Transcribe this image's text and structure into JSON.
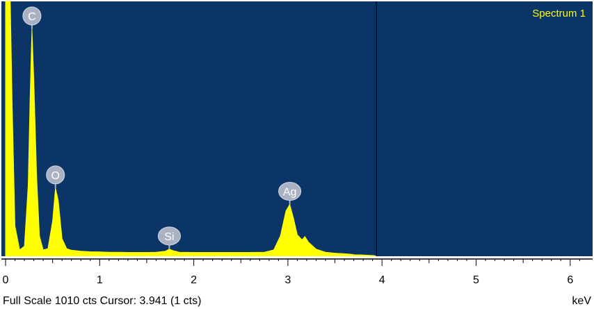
{
  "colors": {
    "plot_background": "#0a3566",
    "trace": "#ffff00",
    "peak_marker": "#a9b1c2",
    "cursor_line": "#000000",
    "legend_text": "#ffff00"
  },
  "chart_data": {
    "type": "area",
    "title": "",
    "series": [
      {
        "name": "Spectrum 1",
        "points": [
          [
            0.0,
            1010
          ],
          [
            0.03,
            1010
          ],
          [
            0.05,
            1010
          ],
          [
            0.07,
            600
          ],
          [
            0.1,
            120
          ],
          [
            0.15,
            25
          ],
          [
            0.2,
            40
          ],
          [
            0.24,
            280
          ],
          [
            0.26,
            620
          ],
          [
            0.28,
            900
          ],
          [
            0.3,
            700
          ],
          [
            0.33,
            320
          ],
          [
            0.36,
            80
          ],
          [
            0.4,
            25
          ],
          [
            0.45,
            30
          ],
          [
            0.5,
            140
          ],
          [
            0.53,
            270
          ],
          [
            0.56,
            220
          ],
          [
            0.6,
            70
          ],
          [
            0.65,
            30
          ],
          [
            0.7,
            24
          ],
          [
            0.8,
            20
          ],
          [
            0.9,
            18
          ],
          [
            1.0,
            17
          ],
          [
            1.1,
            16
          ],
          [
            1.2,
            16
          ],
          [
            1.3,
            15
          ],
          [
            1.4,
            15
          ],
          [
            1.5,
            15
          ],
          [
            1.6,
            16
          ],
          [
            1.7,
            20
          ],
          [
            1.74,
            28
          ],
          [
            1.78,
            22
          ],
          [
            1.85,
            16
          ],
          [
            2.0,
            15
          ],
          [
            2.2,
            15
          ],
          [
            2.4,
            15
          ],
          [
            2.6,
            15
          ],
          [
            2.75,
            16
          ],
          [
            2.85,
            25
          ],
          [
            2.92,
            80
          ],
          [
            2.98,
            180
          ],
          [
            3.02,
            205
          ],
          [
            3.06,
            150
          ],
          [
            3.1,
            85
          ],
          [
            3.15,
            65
          ],
          [
            3.18,
            78
          ],
          [
            3.22,
            55
          ],
          [
            3.3,
            28
          ],
          [
            3.4,
            16
          ],
          [
            3.5,
            12
          ],
          [
            3.6,
            10
          ],
          [
            3.7,
            7
          ],
          [
            3.8,
            5
          ],
          [
            3.9,
            3
          ],
          [
            3.941,
            1
          ]
        ]
      }
    ],
    "x_ticks": [
      "0",
      "1",
      "2",
      "3",
      "4",
      "5",
      "6"
    ],
    "xlim": [
      0,
      6.15
    ],
    "ylim": [
      0,
      1010
    ],
    "x_unit": "keV",
    "cursor_kev": 3.941,
    "peaks": [
      {
        "label": "C",
        "energy": 0.28,
        "counts": 900
      },
      {
        "label": "O",
        "energy": 0.53,
        "counts": 270
      },
      {
        "label": "Si",
        "energy": 1.74,
        "counts": 28
      },
      {
        "label": "Ag",
        "energy": 3.02,
        "counts": 205
      }
    ],
    "legend": "Spectrum 1",
    "legend_position": "top-right",
    "status": "Full Scale 1010 cts Cursor: 3.941  (1 cts)"
  }
}
